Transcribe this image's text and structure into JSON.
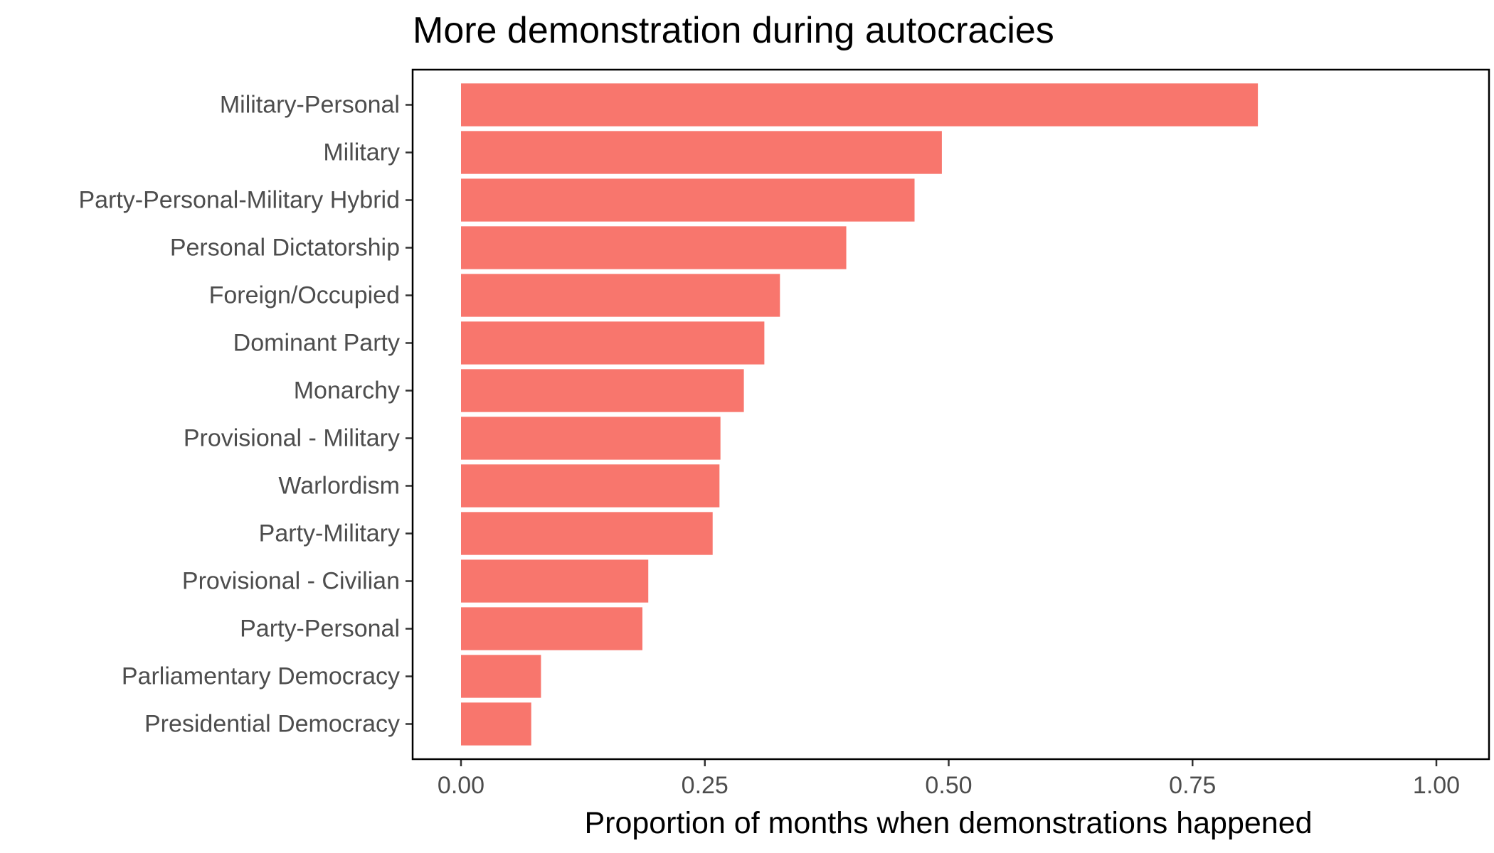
{
  "chart_data": {
    "type": "bar",
    "orientation": "horizontal",
    "title": "More demonstration during autocracies",
    "xlabel": "Proportion of months when demonstrations happened",
    "ylabel": "",
    "xlim": [
      0,
      1
    ],
    "x_ticks": [
      "0.00",
      "0.25",
      "0.50",
      "0.75",
      "1.00"
    ],
    "x_tick_values": [
      0,
      0.25,
      0.5,
      0.75,
      1.0
    ],
    "categories": [
      "Military-Personal",
      "Military",
      "Party-Personal-Military Hybrid",
      "Personal Dictatorship",
      "Foreign/Occupied",
      "Dominant Party",
      "Monarchy",
      "Provisional - Military",
      "Warlordism",
      "Party-Military",
      "Provisional - Civilian",
      "Party-Personal",
      "Parliamentary Democracy",
      "Presidential Democracy"
    ],
    "values": [
      0.817,
      0.493,
      0.465,
      0.395,
      0.327,
      0.311,
      0.29,
      0.266,
      0.265,
      0.258,
      0.192,
      0.186,
      0.082,
      0.072
    ],
    "bar_color": "#F8766D",
    "grid": false,
    "legend": "none"
  }
}
